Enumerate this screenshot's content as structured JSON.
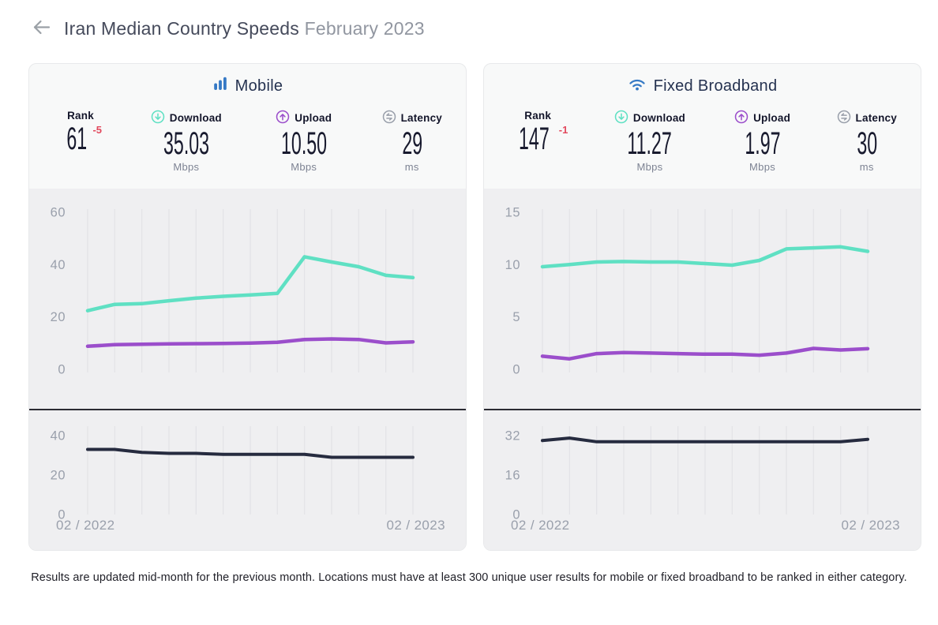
{
  "page": {
    "title_main": "Iran Median Country Speeds",
    "title_period": "February 2023",
    "back_icon": "back-arrow-icon",
    "footer": "Results are updated mid-month for the previous month. Locations must have at least 300 unique user results for mobile or fixed broadband to be ranked in either category."
  },
  "colors": {
    "accent_blue": "#3579c5",
    "download": "#5fe0c3",
    "upload": "#9b4ecb",
    "latency_line": "#262b3f",
    "grid": "#e2e2e6",
    "tick": "#9aa0ac",
    "rank_delta": "#e2495d",
    "card_head_bg": "#f8f9f9",
    "chart_bg": "#efeff1"
  },
  "cards": [
    {
      "id": "mobile",
      "title": "Mobile",
      "icon": "mobile-bars-icon",
      "stats": [
        {
          "label": "Rank",
          "value": "61",
          "delta": "-5",
          "unit": ""
        },
        {
          "label": "Download",
          "icon": "download-icon",
          "value": "35.03",
          "unit": "Mbps"
        },
        {
          "label": "Upload",
          "icon": "upload-icon",
          "value": "10.50",
          "unit": "Mbps"
        },
        {
          "label": "Latency",
          "icon": "latency-icon",
          "value": "29",
          "unit": "ms"
        }
      ]
    },
    {
      "id": "fixed",
      "title": "Fixed Broadband",
      "icon": "wifi-icon",
      "stats": [
        {
          "label": "Rank",
          "value": "147",
          "delta": "-1",
          "unit": ""
        },
        {
          "label": "Download",
          "icon": "download-icon",
          "value": "11.27",
          "unit": "Mbps"
        },
        {
          "label": "Upload",
          "icon": "upload-icon",
          "value": "1.97",
          "unit": "Mbps"
        },
        {
          "label": "Latency",
          "icon": "latency-icon",
          "value": "30",
          "unit": "ms"
        }
      ]
    }
  ],
  "chart_data": [
    {
      "id": "mobile-speeds",
      "type": "line",
      "x_start_label": "02 / 2022",
      "x_end_label": "02 / 2023",
      "n_points": 13,
      "y_ticks": [
        60,
        40,
        20,
        0
      ],
      "ylim": [
        0,
        60
      ],
      "grid": "vertical-only",
      "legend": "none",
      "series": [
        {
          "name": "download",
          "color": "#5fe0c3",
          "values": [
            22.4,
            24.8,
            25.1,
            26.2,
            27.2,
            27.9,
            28.4,
            29.0,
            43.0,
            41.0,
            39.2,
            35.9,
            35.03
          ]
        },
        {
          "name": "upload",
          "color": "#9b4ecb",
          "values": [
            8.8,
            9.4,
            9.6,
            9.7,
            9.8,
            9.9,
            10.0,
            10.3,
            11.4,
            11.6,
            11.4,
            10.1,
            10.5
          ]
        }
      ]
    },
    {
      "id": "mobile-latency",
      "type": "line",
      "n_points": 13,
      "y_ticks": [
        40,
        20,
        0
      ],
      "ylim": [
        0,
        40
      ],
      "grid": "vertical-only",
      "legend": "none",
      "series": [
        {
          "name": "latency",
          "color": "#262b3f",
          "values": [
            33,
            33,
            31.5,
            31,
            31,
            30.5,
            30.5,
            30.5,
            30.5,
            29,
            29,
            29,
            29
          ]
        }
      ]
    },
    {
      "id": "fixed-speeds",
      "type": "line",
      "x_start_label": "02 / 2022",
      "x_end_label": "02 / 2023",
      "n_points": 13,
      "y_ticks": [
        15,
        10,
        5,
        0
      ],
      "ylim": [
        0,
        15
      ],
      "grid": "vertical-only",
      "legend": "none",
      "series": [
        {
          "name": "download",
          "color": "#5fe0c3",
          "values": [
            9.8,
            10.0,
            10.25,
            10.3,
            10.25,
            10.25,
            10.1,
            9.95,
            10.4,
            11.5,
            11.6,
            11.7,
            11.27
          ]
        },
        {
          "name": "upload",
          "color": "#9b4ecb",
          "values": [
            1.25,
            1.0,
            1.5,
            1.6,
            1.55,
            1.5,
            1.45,
            1.45,
            1.35,
            1.55,
            2.0,
            1.85,
            1.97
          ]
        }
      ]
    },
    {
      "id": "fixed-latency",
      "type": "line",
      "n_points": 13,
      "y_ticks": [
        32,
        16,
        0
      ],
      "ylim": [
        0,
        32
      ],
      "grid": "vertical-only",
      "legend": "none",
      "series": [
        {
          "name": "latency",
          "color": "#262b3f",
          "values": [
            30,
            31,
            29.5,
            29.5,
            29.5,
            29.5,
            29.5,
            29.5,
            29.5,
            29.5,
            29.5,
            29.5,
            30.5
          ]
        }
      ]
    }
  ]
}
